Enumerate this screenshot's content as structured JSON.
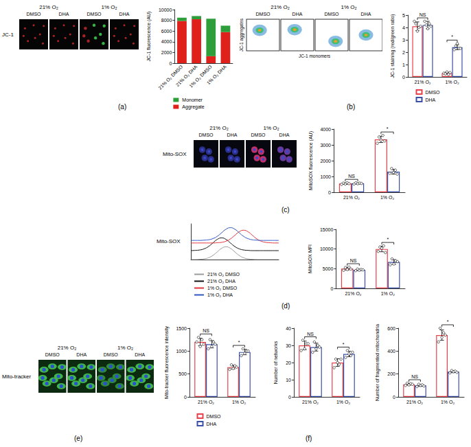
{
  "panel_labels": [
    "(a)",
    "(b)",
    "(c)",
    "(d)",
    "(e)",
    "(f)"
  ],
  "images": [
    {
      "row_label": "JC-1",
      "groups": [
        "21% O₂",
        "1% O₂"
      ],
      "columns": [
        "DMSO",
        "DHA",
        "DMSO",
        "DHA"
      ]
    },
    {
      "groups": [
        "21% O₂",
        "1% O₂"
      ],
      "columns": [
        "DMSO",
        "DHA",
        "DMSO",
        "DHA"
      ],
      "xlabel": "JC-1 monomers",
      "ylabel": "JC-1 aggregates"
    },
    {
      "row_label": "Mito-SOX",
      "groups": [
        "21% O₂",
        "1% O₂"
      ],
      "columns": [
        "DMSO",
        "DHA",
        "DMSO",
        "DHA"
      ]
    },
    {
      "row_label": "Mito-tracker",
      "groups": [
        "21% O₂",
        "1% O₂"
      ],
      "columns": [
        "DMSO",
        "DHA",
        "DMSO",
        "DHA"
      ]
    }
  ],
  "chart_data": [
    {
      "type": "bar",
      "stacked": true,
      "ylabel": "JC-1 fluorescence (AU)",
      "categories": [
        "21% O₂ DMSO",
        "21% O₂ DHA",
        "1% O₂ DMSO",
        "1% O₂ DHA"
      ],
      "series": [
        {
          "name": "Monomer",
          "color": "#2e9e3a",
          "values": [
            600,
            600,
            7000,
            1200
          ]
        },
        {
          "name": "Aggregate",
          "color": "#e0201b",
          "values": [
            7900,
            8200,
            1300,
            5800
          ]
        }
      ],
      "ylim": [
        0,
        10000
      ],
      "yticks": [
        0,
        2000,
        4000,
        6000,
        8000,
        10000
      ],
      "legend": "bottom"
    },
    {
      "type": "bar",
      "ylabel": "JC-1 staining (red/green ratio)",
      "categories": [
        "21% O₂",
        "1% O₂"
      ],
      "series": [
        {
          "name": "DMSO",
          "color": "#e8414a",
          "values": [
            4.1,
            0.3
          ],
          "errors": [
            0.35,
            0.08
          ],
          "points": [
            [
              4.5,
              4.3,
              3.7,
              4.0,
              4.1
            ],
            [
              0.3,
              0.25,
              0.4,
              0.2,
              0.35
            ]
          ]
        },
        {
          "name": "DHA",
          "color": "#3b4fa8",
          "values": [
            4.2,
            2.4
          ],
          "errors": [
            0.3,
            0.2
          ],
          "points": [
            [
              4.5,
              4.2,
              3.9,
              4.3,
              4.1
            ],
            [
              2.2,
              2.5,
              2.7,
              2.3,
              2.3
            ]
          ]
        }
      ],
      "annotations": [
        "NS",
        "*"
      ],
      "ylim": [
        0,
        5
      ],
      "yticks": [
        0,
        1,
        2,
        3,
        4,
        5
      ],
      "legend": "bottom"
    },
    {
      "type": "bar",
      "ylabel": "MitoSOX fluorescence (AU)",
      "categories": [
        "21% O₂",
        "1% O₂"
      ],
      "series": [
        {
          "name": "DMSO",
          "color": "#e8414a",
          "values": [
            550,
            3350
          ],
          "errors": [
            45,
            200
          ],
          "points": [
            [
              500,
              580,
              520,
              600,
              550
            ],
            [
              3100,
              3500,
              3300,
              3600,
              3250
            ]
          ]
        },
        {
          "name": "DHA",
          "color": "#3b4fa8",
          "values": [
            560,
            1300
          ],
          "errors": [
            30,
            150
          ],
          "points": [
            [
              520,
              600,
              540,
              580,
              560
            ],
            [
              1200,
              1500,
              1250,
              1400,
              1150
            ]
          ]
        }
      ],
      "annotations": [
        "NS",
        "*"
      ],
      "ylim": [
        0,
        4000
      ],
      "yticks": [
        0,
        1000,
        2000,
        3000,
        4000
      ]
    },
    {
      "type": "line",
      "row_label": "Mito-SOX",
      "tick_labels": false,
      "x": [
        0,
        1,
        2,
        3,
        4,
        5,
        6,
        7,
        8,
        9,
        10,
        11,
        12,
        13,
        14,
        15,
        16,
        17,
        18,
        19,
        20
      ],
      "series": [
        {
          "name": "21% O₂ DMSO",
          "color": "#9a9a9a",
          "values": [
            0,
            0,
            0.02,
            0.05,
            0.14,
            0.32,
            0.6,
            0.88,
            1,
            0.88,
            0.6,
            0.32,
            0.14,
            0.05,
            0.02,
            0,
            0,
            0,
            0,
            0,
            0
          ]
        },
        {
          "name": "21% O₂ DHA",
          "color": "#111111",
          "values": [
            0.7,
            0.72,
            0.75,
            0.84,
            1.02,
            1.3,
            1.58,
            1.7,
            1.58,
            1.3,
            1.02,
            0.84,
            0.75,
            0.72,
            0.7,
            0.7,
            0.7,
            0.7,
            0.7,
            0.7,
            0.7
          ]
        },
        {
          "name": "1% O₂ DMSO",
          "color": "#e2333a",
          "values": [
            1.3,
            1.3,
            1.3,
            1.3,
            1.3,
            1.3,
            1.32,
            1.35,
            1.44,
            1.62,
            1.9,
            2.18,
            2.3,
            2.18,
            1.9,
            1.62,
            1.44,
            1.35,
            1.32,
            1.3,
            1.3
          ]
        },
        {
          "name": "1% O₂ DHA",
          "color": "#2f56c4",
          "values": [
            1.5,
            1.5,
            1.5,
            1.52,
            1.55,
            1.64,
            1.82,
            2.1,
            2.38,
            2.5,
            2.38,
            2.1,
            1.82,
            1.64,
            1.55,
            1.52,
            1.5,
            1.5,
            1.5,
            1.5,
            1.5
          ]
        }
      ],
      "xlim": [
        0,
        20
      ],
      "ylim": [
        0,
        2.8
      ],
      "legend": "bottom"
    },
    {
      "type": "bar",
      "ylabel": "MitoSOX MFI",
      "categories": [
        "21% O₂",
        "1% O₂"
      ],
      "series": [
        {
          "name": "DMSO",
          "color": "#e8414a",
          "values": [
            5000,
            10000
          ],
          "errors": [
            350,
            700
          ],
          "points": [
            [
              4600,
              5300,
              4800,
              5400,
              4900
            ],
            [
              9400,
              10500,
              10200,
              10800,
              9100
            ]
          ]
        },
        {
          "name": "DHA",
          "color": "#3b4fa8",
          "values": [
            4700,
            6700
          ],
          "errors": [
            160,
            600
          ],
          "points": [
            [
              4500,
              4900,
              4600,
              4800,
              4700
            ],
            [
              6000,
              7500,
              6200,
              7000,
              6800
            ]
          ]
        }
      ],
      "annotations": [
        "NS",
        "*"
      ],
      "ylim": [
        0,
        15000
      ],
      "yticks": [
        0,
        5000,
        10000,
        15000
      ]
    },
    {
      "type": "bar",
      "ylabel": "Mito-tracker fluorescence intensity",
      "categories": [
        "21% O₂",
        "1% O₂"
      ],
      "series": [
        {
          "name": "DMSO",
          "color": "#e8414a",
          "values": [
            1200,
            650
          ],
          "errors": [
            80,
            40
          ],
          "points": [
            [
              1200,
              1300,
              1100,
              1250,
              1150
            ],
            [
              600,
              700,
              620,
              680,
              650
            ]
          ]
        },
        {
          "name": "DHA",
          "color": "#3b4fa8",
          "values": [
            1150,
            980
          ],
          "errors": [
            80,
            60
          ],
          "points": [
            [
              1050,
              1250,
              1100,
              1200,
              1150
            ],
            [
              900,
              1050,
              950,
              1000,
              1000
            ]
          ]
        }
      ],
      "annotations": [
        "NS",
        "*"
      ],
      "ylim": [
        0,
        1500
      ],
      "yticks": [
        0,
        500,
        1000,
        1500
      ],
      "legend": "bottom"
    },
    {
      "type": "bar",
      "ylabel": "Number of networks",
      "categories": [
        "21% O₂",
        "1% O₂"
      ],
      "series": [
        {
          "name": "DMSO",
          "color": "#e8414a",
          "values": [
            30,
            20
          ],
          "errors": [
            2.5,
            2.2
          ],
          "points": [
            [
              27,
              33,
              28,
              31,
              31
            ],
            [
              17,
              22,
              20,
              19,
              22
            ]
          ]
        },
        {
          "name": "DHA",
          "color": "#3b4fa8",
          "values": [
            29,
            25
          ],
          "errors": [
            2.3,
            1.6
          ],
          "points": [
            [
              26,
              32,
              28,
              30,
              29
            ],
            [
              23,
              27,
              25,
              24,
              26
            ]
          ]
        }
      ],
      "annotations": [
        "NS",
        "*"
      ],
      "ylim": [
        0,
        40
      ],
      "yticks": [
        0,
        10,
        20,
        30,
        40
      ]
    },
    {
      "type": "bar",
      "ylabel": "Number of fragmented mitochondria",
      "categories": [
        "21% O₂",
        "1% O₂"
      ],
      "series": [
        {
          "name": "DMSO",
          "color": "#e8414a",
          "values": [
            110,
            540
          ],
          "errors": [
            8,
            45
          ],
          "points": [
            [
              100,
              120,
              105,
              115,
              110
            ],
            [
              480,
              600,
              520,
              560,
              540
            ]
          ]
        },
        {
          "name": "DHA",
          "color": "#3b4fa8",
          "values": [
            100,
            220
          ],
          "errors": [
            8,
            8
          ],
          "points": [
            [
              90,
              110,
              100,
              105,
              95
            ],
            [
              210,
              230,
              220,
              225,
              215
            ]
          ]
        }
      ],
      "annotations": [
        "NS",
        "*"
      ],
      "ylim": [
        0,
        600
      ],
      "yticks": [
        0,
        200,
        400,
        600
      ]
    }
  ]
}
